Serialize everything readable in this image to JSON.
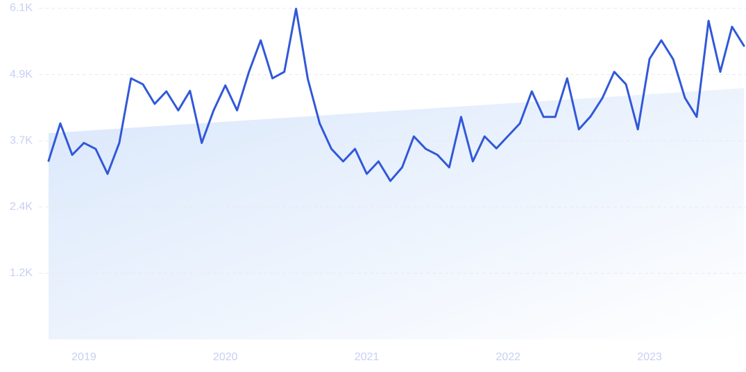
{
  "chart_data": {
    "type": "line",
    "x": [
      2018.75,
      2018.833,
      2018.917,
      2019,
      2019.083,
      2019.167,
      2019.25,
      2019.333,
      2019.417,
      2019.5,
      2019.583,
      2019.667,
      2019.75,
      2019.833,
      2019.917,
      2020,
      2020.083,
      2020.167,
      2020.25,
      2020.333,
      2020.417,
      2020.5,
      2020.583,
      2020.667,
      2020.75,
      2020.833,
      2020.917,
      2021,
      2021.083,
      2021.167,
      2021.25,
      2021.333,
      2021.417,
      2021.5,
      2021.583,
      2021.667,
      2021.75,
      2021.833,
      2021.917,
      2022,
      2022.083,
      2022.167,
      2022.25,
      2022.333,
      2022.417,
      2022.5,
      2022.583,
      2022.667,
      2022.75,
      2022.833,
      2022.917,
      2023,
      2023.083,
      2023.167,
      2023.25,
      2023.333,
      2023.417,
      2023.5,
      2023.583,
      2023.667
    ],
    "series": [
      {
        "color": "#3158d9",
        "values": [
          3290,
          3980,
          3400,
          3620,
          3510,
          3050,
          3620,
          4810,
          4700,
          4340,
          4570,
          4220,
          4580,
          3620,
          4220,
          4680,
          4220,
          4930,
          5510,
          4810,
          4930,
          6090,
          4800,
          3980,
          3510,
          3280,
          3510,
          3050,
          3280,
          2920,
          3170,
          3740,
          3510,
          3400,
          3170,
          4100,
          3280,
          3740,
          3520,
          3750,
          3980,
          4570,
          4100,
          4100,
          4810,
          3870,
          4110,
          4450,
          4930,
          4700,
          3870,
          5170,
          5510,
          5160,
          4450,
          4100,
          5870,
          4930,
          5760,
          5410
        ]
      }
    ],
    "trend": [
      3800,
      4630
    ],
    "xlim": [
      2018.75,
      2023.667
    ],
    "xticks": [
      2019,
      2020,
      2021,
      2022,
      2023
    ],
    "ylim": [
      0,
      6100
    ],
    "yticks": [
      {
        "value": 1220,
        "label": "1.2K"
      },
      {
        "value": 2440,
        "label": "2.4K"
      },
      {
        "value": 3660,
        "label": "3.7K"
      },
      {
        "value": 4880,
        "label": "4.9K"
      },
      {
        "value": 6100,
        "label": "6.1K"
      }
    ],
    "grid": true
  }
}
